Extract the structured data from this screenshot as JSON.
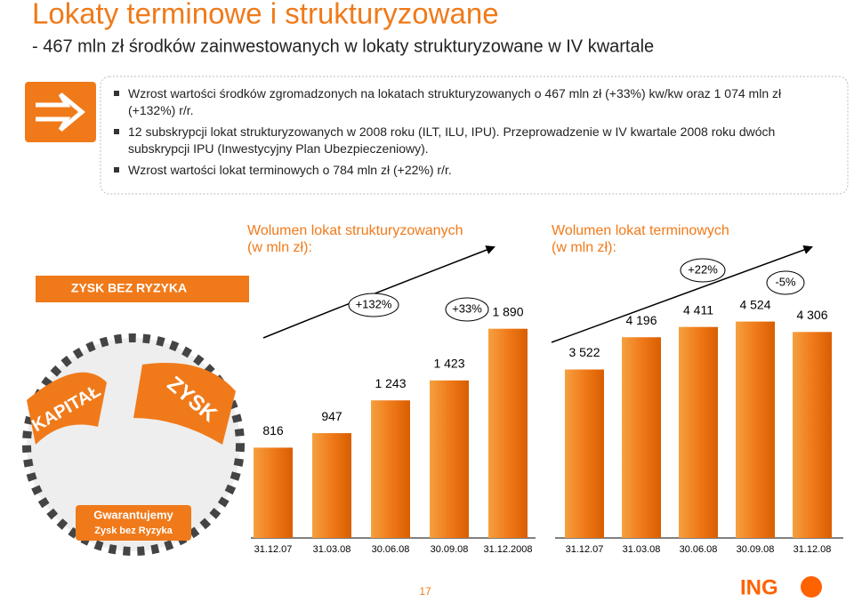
{
  "header": {
    "title": "Lokaty terminowe i strukturyzowane",
    "subtitle": "- 467 mln zł środków zainwestowanych w lokaty strukturyzowane w IV kwartale"
  },
  "bullets": [
    "Wzrost wartości środków zgromadzonych na lokatach strukturyzowanych o 467 mln zł (+33%) kw/kw oraz 1 074 mln zł (+132%) r/r.",
    "12 subskrypcji lokat strukturyzowanych w 2008 roku (ILT, ILU, IPU). Przeprowadzenie w IV kwartale 2008 roku dwóch subskrypcji IPU (Inwestycyjny Plan Ubezpieczeniowy).",
    "Wzrost wartości lokat terminowych o 784 mln zł (+22%) r/r."
  ],
  "promo": {
    "banner": "ZYSK BEZ RYZYKA",
    "flag_left": "KAPITAŁ",
    "flag_right": "ZYSK",
    "badge_line1": "Gwarantujemy",
    "badge_line2": "Zysk bez Ryzyka"
  },
  "chart_data": [
    {
      "type": "bar",
      "title": "Wolumen lokat strukturyzowanych",
      "subtitle": "(w mln zł):",
      "categories": [
        "31.12.07",
        "31.03.08",
        "30.06.08",
        "30.09.08",
        "31.12.2008"
      ],
      "values": [
        816,
        947,
        1243,
        1423,
        1890
      ],
      "value_labels": [
        "816",
        "947",
        "1 243",
        "1 423",
        "1 890"
      ],
      "color": "#f07a1a",
      "annotations": [
        "+132%",
        "+33%"
      ]
    },
    {
      "type": "bar",
      "title": "Wolumen lokat terminowych",
      "subtitle": "(w mln zł):",
      "categories": [
        "31.12.07",
        "31.03.08",
        "30.06.08",
        "30.09.08",
        "31.12.08"
      ],
      "values": [
        3522,
        4196,
        4411,
        4524,
        4306
      ],
      "value_labels": [
        "3 522",
        "4 196",
        "4 411",
        "4 524",
        "4 306"
      ],
      "color": "#f07a1a",
      "annotations": [
        "+22%",
        "-5%"
      ]
    }
  ],
  "footer": {
    "page": "17",
    "logo": "ING"
  }
}
